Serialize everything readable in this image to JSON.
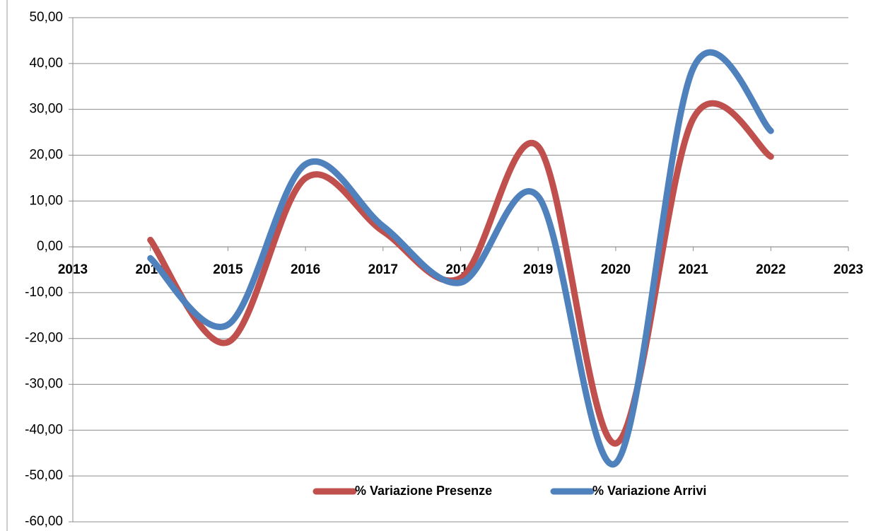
{
  "chart_data": {
    "type": "line",
    "x": [
      2014,
      2015,
      2016,
      2017,
      2018,
      2019,
      2020,
      2021,
      2022
    ],
    "series": [
      {
        "name": "% Variazione Presenze",
        "color": "#c0504d",
        "values": [
          1.5,
          -20.8,
          15,
          3.4,
          -6.8,
          21.9,
          -42.9,
          28,
          19.7
        ]
      },
      {
        "name": "% Variazione Arrivi",
        "color": "#4f81bd",
        "values": [
          -2.5,
          -17,
          18,
          4.5,
          -7.8,
          11,
          -47.2,
          39,
          25.3
        ]
      }
    ],
    "xlim": [
      2013,
      2023
    ],
    "xticks": [
      2013,
      2014,
      2015,
      2016,
      2017,
      2018,
      2019,
      2020,
      2021,
      2022,
      2023
    ],
    "ylim": [
      -60,
      50
    ],
    "yticks": [
      {
        "value": -60,
        "label": "-60,00"
      },
      {
        "value": -50,
        "label": "-50,00"
      },
      {
        "value": -40,
        "label": "-40,00"
      },
      {
        "value": -30,
        "label": "-30,00"
      },
      {
        "value": -20,
        "label": "-20,00"
      },
      {
        "value": -10,
        "label": "-10,00"
      },
      {
        "value": 0,
        "label": "0,00"
      },
      {
        "value": 10,
        "label": "10,00"
      },
      {
        "value": 20,
        "label": "20,00"
      },
      {
        "value": 30,
        "label": "30,00"
      },
      {
        "value": 40,
        "label": "40,00"
      },
      {
        "value": 50,
        "label": "50,00"
      }
    ],
    "grid": true,
    "legend": "bottom",
    "smooth": true
  }
}
